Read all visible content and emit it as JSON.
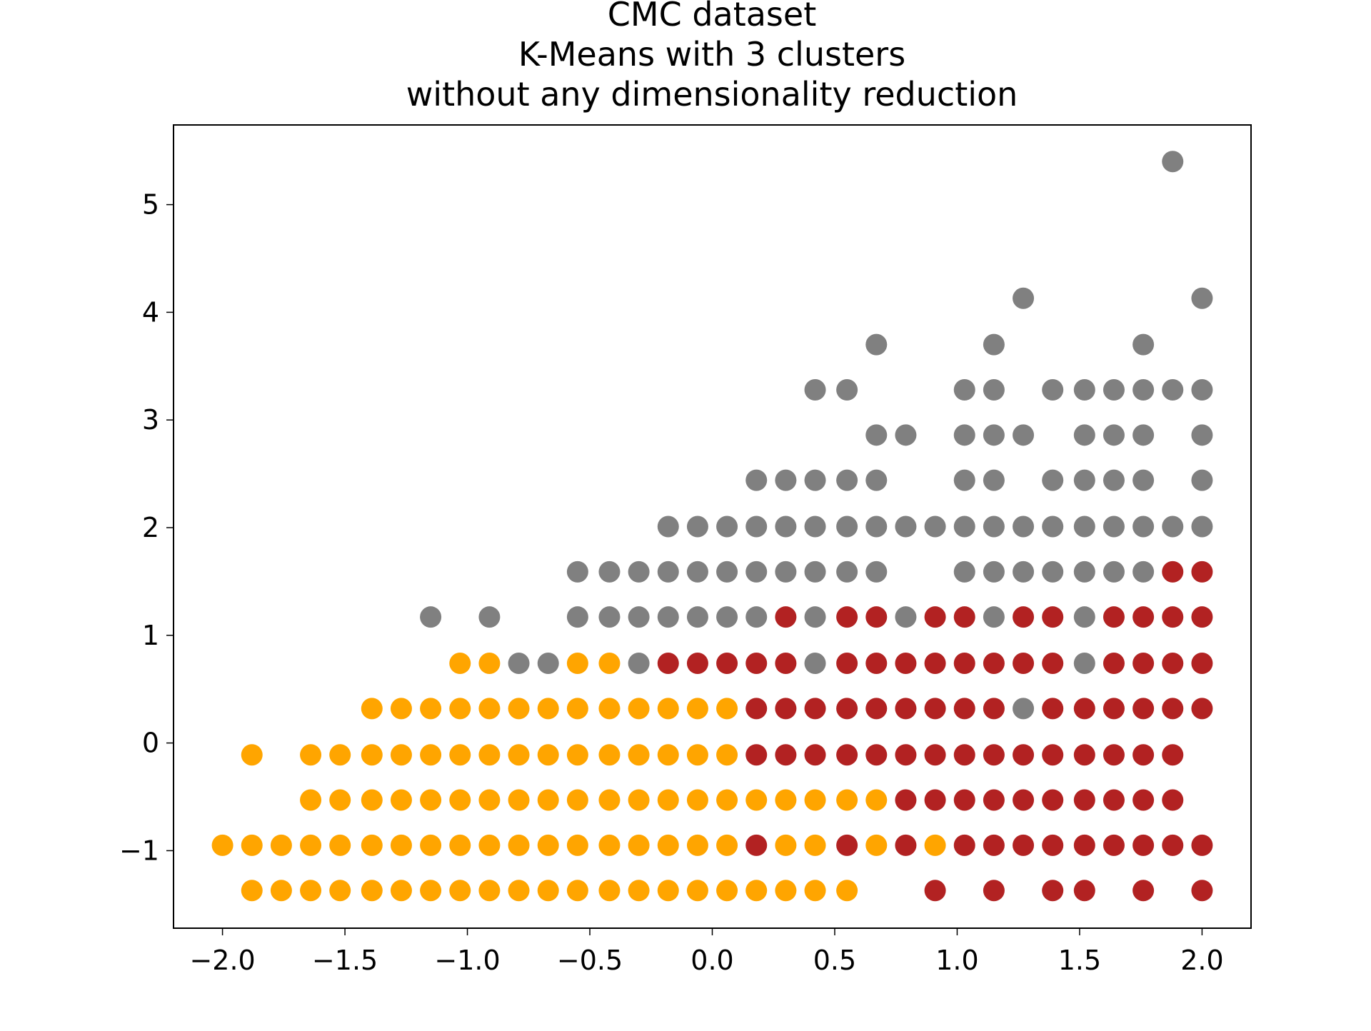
{
  "chart_data": {
    "type": "scatter",
    "title": [
      "CMC dataset",
      "K-Means with 3 clusters",
      "without any dimensionality reduction"
    ],
    "xlim": [
      -2.2,
      2.2
    ],
    "ylim": [
      -1.72,
      5.74
    ],
    "xticks": [
      {
        "value": -2.0,
        "label": "−2.0"
      },
      {
        "value": -1.5,
        "label": "−1.5"
      },
      {
        "value": -1.0,
        "label": "−1.0"
      },
      {
        "value": -0.5,
        "label": "−0.5"
      },
      {
        "value": 0.0,
        "label": "0.0"
      },
      {
        "value": 0.5,
        "label": "0.5"
      },
      {
        "value": 1.0,
        "label": "1.0"
      },
      {
        "value": 1.5,
        "label": "1.5"
      },
      {
        "value": 2.0,
        "label": "2.0"
      }
    ],
    "yticks": [
      {
        "value": -1,
        "label": "−1"
      },
      0,
      1,
      2,
      3,
      4,
      5
    ],
    "series": [
      {
        "color": "#ffa500",
        "x": [
          -1.88,
          -1.76,
          -1.64,
          -1.52,
          -1.39,
          -1.27,
          -1.15,
          -1.03,
          -0.91,
          -0.79,
          -0.67,
          -0.55,
          -0.42,
          -0.3,
          -0.18,
          -0.06,
          0.06,
          0.18,
          0.3,
          0.42,
          0.55,
          -2.0,
          -1.88,
          -1.76,
          -1.64,
          -1.52,
          -1.39,
          -1.27,
          -1.15,
          -1.03,
          -0.91,
          -0.79,
          -0.67,
          -0.55,
          -0.42,
          -0.3,
          -0.18,
          -0.06,
          0.06,
          0.3,
          0.42,
          0.67,
          0.91,
          -1.64,
          -1.52,
          -1.39,
          -1.27,
          -1.15,
          -1.03,
          -0.91,
          -0.79,
          -0.67,
          -0.55,
          -0.42,
          -0.3,
          -0.18,
          -0.06,
          0.06,
          0.18,
          0.3,
          0.42,
          0.55,
          0.67,
          -1.88,
          -1.64,
          -1.52,
          -1.39,
          -1.27,
          -1.15,
          -1.03,
          -0.91,
          -0.79,
          -0.67,
          -0.55,
          -0.42,
          -0.3,
          -0.18,
          -0.06,
          0.06,
          -1.39,
          -1.27,
          -1.15,
          -1.03,
          -0.91,
          -0.79,
          -0.67,
          -0.55,
          -0.42,
          -0.3,
          -0.18,
          -0.06,
          0.06,
          -1.03,
          -0.91,
          -0.55,
          -0.42
        ],
        "values": [
          -1.37,
          -1.37,
          -1.37,
          -1.37,
          -1.37,
          -1.37,
          -1.37,
          -1.37,
          -1.37,
          -1.37,
          -1.37,
          -1.37,
          -1.37,
          -1.37,
          -1.37,
          -1.37,
          -1.37,
          -1.37,
          -1.37,
          -1.37,
          -1.37,
          -0.95,
          -0.95,
          -0.95,
          -0.95,
          -0.95,
          -0.95,
          -0.95,
          -0.95,
          -0.95,
          -0.95,
          -0.95,
          -0.95,
          -0.95,
          -0.95,
          -0.95,
          -0.95,
          -0.95,
          -0.95,
          -0.95,
          -0.95,
          -0.95,
          -0.95,
          -0.53,
          -0.53,
          -0.53,
          -0.53,
          -0.53,
          -0.53,
          -0.53,
          -0.53,
          -0.53,
          -0.53,
          -0.53,
          -0.53,
          -0.53,
          -0.53,
          -0.53,
          -0.53,
          -0.53,
          -0.53,
          -0.53,
          -0.53,
          -0.11,
          -0.11,
          -0.11,
          -0.11,
          -0.11,
          -0.11,
          -0.11,
          -0.11,
          -0.11,
          -0.11,
          -0.11,
          -0.11,
          -0.11,
          -0.11,
          -0.11,
          -0.11,
          0.32,
          0.32,
          0.32,
          0.32,
          0.32,
          0.32,
          0.32,
          0.32,
          0.32,
          0.32,
          0.32,
          0.32,
          0.32,
          0.74,
          0.74,
          0.74,
          0.74
        ]
      },
      {
        "color": "#b22222",
        "x": [
          0.91,
          1.15,
          1.39,
          1.52,
          1.76,
          2.0,
          0.18,
          0.55,
          0.79,
          1.03,
          1.15,
          1.27,
          1.39,
          1.52,
          1.64,
          1.76,
          1.88,
          2.0,
          0.79,
          0.91,
          1.03,
          1.15,
          1.27,
          1.39,
          1.52,
          1.64,
          1.76,
          1.88,
          0.18,
          0.3,
          0.42,
          0.55,
          0.67,
          0.79,
          0.91,
          1.03,
          1.15,
          1.27,
          1.39,
          1.52,
          1.64,
          1.76,
          1.88,
          0.18,
          0.3,
          0.42,
          0.55,
          0.67,
          0.79,
          0.91,
          1.03,
          1.15,
          1.39,
          1.52,
          1.64,
          1.76,
          1.88,
          2.0,
          -0.18,
          -0.06,
          0.06,
          0.18,
          0.3,
          0.55,
          0.67,
          0.79,
          0.91,
          1.03,
          1.15,
          1.27,
          1.39,
          1.64,
          1.76,
          1.88,
          2.0,
          0.3,
          0.55,
          0.67,
          0.91,
          1.03,
          1.27,
          1.39,
          1.64,
          1.76,
          1.88,
          2.0,
          1.88,
          2.0
        ],
        "values": [
          -1.37,
          -1.37,
          -1.37,
          -1.37,
          -1.37,
          -1.37,
          -0.95,
          -0.95,
          -0.95,
          -0.95,
          -0.95,
          -0.95,
          -0.95,
          -0.95,
          -0.95,
          -0.95,
          -0.95,
          -0.95,
          -0.53,
          -0.53,
          -0.53,
          -0.53,
          -0.53,
          -0.53,
          -0.53,
          -0.53,
          -0.53,
          -0.53,
          -0.11,
          -0.11,
          -0.11,
          -0.11,
          -0.11,
          -0.11,
          -0.11,
          -0.11,
          -0.11,
          -0.11,
          -0.11,
          -0.11,
          -0.11,
          -0.11,
          -0.11,
          0.32,
          0.32,
          0.32,
          0.32,
          0.32,
          0.32,
          0.32,
          0.32,
          0.32,
          0.32,
          0.32,
          0.32,
          0.32,
          0.32,
          0.32,
          0.74,
          0.74,
          0.74,
          0.74,
          0.74,
          0.74,
          0.74,
          0.74,
          0.74,
          0.74,
          0.74,
          0.74,
          0.74,
          0.74,
          0.74,
          0.74,
          0.74,
          1.17,
          1.17,
          1.17,
          1.17,
          1.17,
          1.17,
          1.17,
          1.17,
          1.17,
          1.17,
          1.17,
          1.59,
          1.59
        ]
      },
      {
        "color": "#808080",
        "x": [
          1.27,
          -0.79,
          -0.67,
          -0.3,
          0.42,
          1.52,
          -1.15,
          -0.91,
          -0.55,
          -0.42,
          -0.3,
          -0.18,
          -0.06,
          0.06,
          0.18,
          0.42,
          0.79,
          1.15,
          1.52,
          -0.55,
          -0.42,
          -0.3,
          -0.18,
          -0.06,
          0.06,
          0.18,
          0.3,
          0.42,
          0.55,
          0.67,
          1.03,
          1.15,
          1.27,
          1.39,
          1.52,
          1.64,
          1.76,
          -0.18,
          -0.06,
          0.06,
          0.18,
          0.3,
          0.42,
          0.55,
          0.67,
          0.79,
          0.91,
          1.03,
          1.15,
          1.27,
          1.39,
          1.52,
          1.64,
          1.76,
          1.88,
          2.0,
          0.18,
          0.3,
          0.42,
          0.55,
          0.67,
          1.03,
          1.15,
          1.39,
          1.52,
          1.64,
          1.76,
          2.0,
          0.67,
          0.79,
          1.03,
          1.15,
          1.27,
          1.52,
          1.64,
          1.76,
          2.0,
          0.42,
          0.55,
          1.03,
          1.15,
          1.39,
          1.52,
          1.64,
          1.76,
          1.88,
          2.0,
          0.67,
          1.15,
          1.76,
          1.27,
          2.0,
          1.88
        ],
        "values": [
          0.32,
          0.74,
          0.74,
          0.74,
          0.74,
          0.74,
          1.17,
          1.17,
          1.17,
          1.17,
          1.17,
          1.17,
          1.17,
          1.17,
          1.17,
          1.17,
          1.17,
          1.17,
          1.17,
          1.59,
          1.59,
          1.59,
          1.59,
          1.59,
          1.59,
          1.59,
          1.59,
          1.59,
          1.59,
          1.59,
          1.59,
          1.59,
          1.59,
          1.59,
          1.59,
          1.59,
          1.59,
          2.01,
          2.01,
          2.01,
          2.01,
          2.01,
          2.01,
          2.01,
          2.01,
          2.01,
          2.01,
          2.01,
          2.01,
          2.01,
          2.01,
          2.01,
          2.01,
          2.01,
          2.01,
          2.01,
          2.44,
          2.44,
          2.44,
          2.44,
          2.44,
          2.44,
          2.44,
          2.44,
          2.44,
          2.44,
          2.44,
          2.44,
          2.86,
          2.86,
          2.86,
          2.86,
          2.86,
          2.86,
          2.86,
          2.86,
          2.86,
          3.28,
          3.28,
          3.28,
          3.28,
          3.28,
          3.28,
          3.28,
          3.28,
          3.28,
          3.28,
          3.7,
          3.7,
          3.7,
          4.13,
          4.13,
          5.4
        ]
      }
    ]
  }
}
